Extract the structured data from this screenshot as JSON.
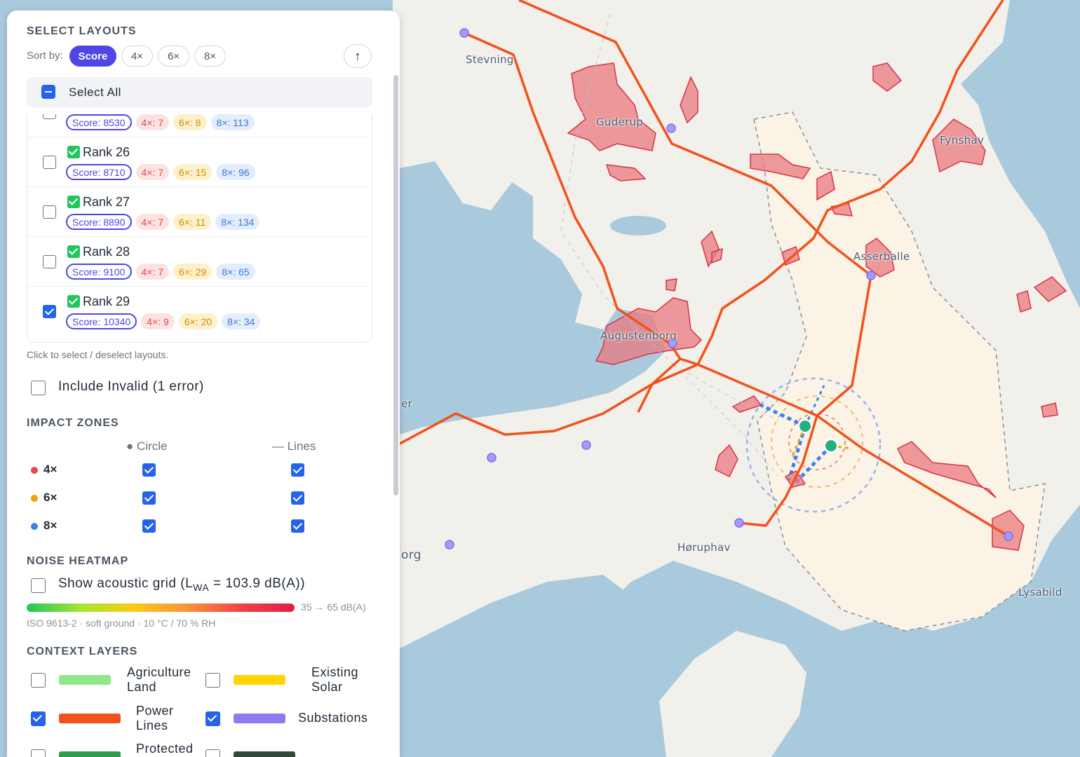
{
  "map": {
    "labels": [
      {
        "text": "Stevning"
      },
      {
        "text": "Guderup"
      },
      {
        "text": "Fynshav"
      },
      {
        "text": "Asserballe"
      },
      {
        "text": "Augustenborg"
      },
      {
        "text": "Høruphav"
      },
      {
        "text": "Lysabild"
      },
      {
        "text": "er"
      },
      {
        "text": "org"
      }
    ],
    "colors": {
      "power_line": "#f2511c",
      "constraint_fill": "#e9797f",
      "substation": "#8b7cf6",
      "turbine": "#22b07d",
      "land": "#f2f0ea",
      "water": "#a9c9dd"
    }
  },
  "panel": {
    "select_layouts_title": "SELECT LAYOUTS",
    "sort_by_label": "Sort by:",
    "sort_options": [
      "Score",
      "4×",
      "6×",
      "8×"
    ],
    "sort_active": "Score",
    "sort_direction_icon": "↑",
    "select_all_label": "Select All",
    "layouts": [
      {
        "rank": "",
        "checked": false,
        "score": "Score: 8530",
        "c4": "4×: 7",
        "c6": "6×: 8",
        "c8": "8×: 113"
      },
      {
        "rank": "Rank 26",
        "checked": false,
        "score": "Score: 8710",
        "c4": "4×: 7",
        "c6": "6×: 15",
        "c8": "8×: 96"
      },
      {
        "rank": "Rank 27",
        "checked": false,
        "score": "Score: 8890",
        "c4": "4×: 7",
        "c6": "6×: 11",
        "c8": "8×: 134"
      },
      {
        "rank": "Rank 28",
        "checked": false,
        "score": "Score: 9100",
        "c4": "4×: 7",
        "c6": "6×: 29",
        "c8": "8×: 65"
      },
      {
        "rank": "Rank 29",
        "checked": true,
        "score": "Score: 10340",
        "c4": "4×: 9",
        "c6": "6×: 20",
        "c8": "8×: 34"
      }
    ],
    "hint": "Click to select / deselect layouts.",
    "include_invalid_label": "Include Invalid (1 error)",
    "impact_zones_title": "IMPACT ZONES",
    "circle_header": "● Circle",
    "lines_header": "— Lines",
    "zones": [
      {
        "label": "4×",
        "color": "#e5484d",
        "circle": true,
        "lines": true
      },
      {
        "label": "6×",
        "color": "#f59e0b",
        "circle": true,
        "lines": true
      },
      {
        "label": "8×",
        "color": "#3b82f6",
        "circle": true,
        "lines": true
      }
    ],
    "noise_title": "NOISE HEATMAP",
    "acoustic_prefix": "Show acoustic grid (L",
    "acoustic_sub": "WA",
    "acoustic_suffix": " = 103.9 dB(A))",
    "range_label": "35 → 65 dB(A)",
    "iso_note": "ISO 9613-2 · soft ground · 10 °C / 70 % RH",
    "context_title": "CONTEXT LAYERS",
    "context_layers": [
      {
        "line1": "Agriculture",
        "line2": "Land",
        "checked": false,
        "color": "#8ee88a"
      },
      {
        "line1": "Existing",
        "line2": "Solar",
        "checked": false,
        "color": "#ffd400"
      },
      {
        "line1": "Power",
        "line2": "Lines",
        "checked": true,
        "color": "#f2511c"
      },
      {
        "line1": "Substations",
        "line2": "",
        "checked": true,
        "color": "#8b7cf6"
      },
      {
        "line1": "Protected",
        "line2": "",
        "checked": false,
        "color": "#2e9e4a"
      },
      {
        "line1": "",
        "line2": "",
        "checked": false,
        "color": "#2f4a3a"
      }
    ]
  }
}
